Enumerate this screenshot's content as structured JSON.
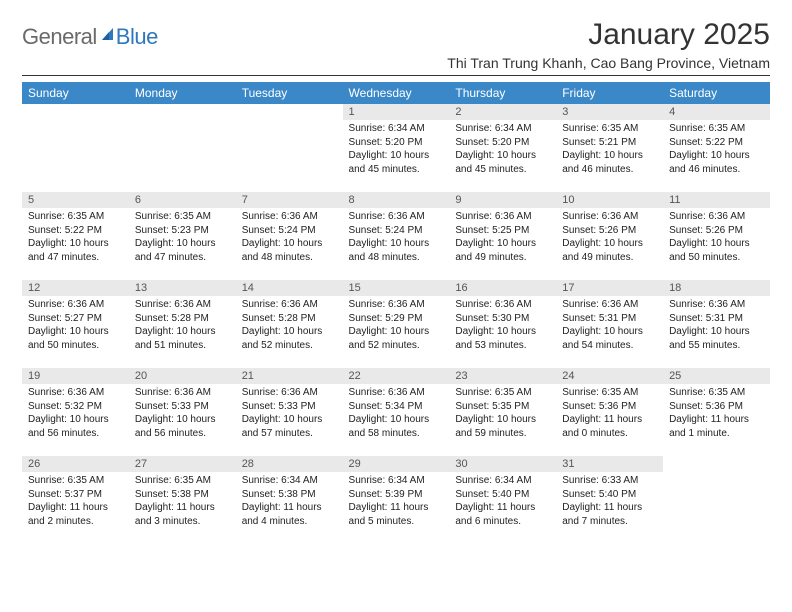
{
  "brand": {
    "part1": "General",
    "part2": "Blue"
  },
  "title": "January 2025",
  "location": "Thi Tran Trung Khanh, Cao Bang Province, Vietnam",
  "colors": {
    "header_bg": "#3b88c8",
    "header_text": "#ffffff",
    "daynum_bg": "#e9e9e9",
    "daynum_text": "#555555",
    "body_text": "#222222",
    "rule": "#333333",
    "logo_gray": "#6a6a6a",
    "logo_blue": "#2f78bd"
  },
  "day_headers": [
    "Sunday",
    "Monday",
    "Tuesday",
    "Wednesday",
    "Thursday",
    "Friday",
    "Saturday"
  ],
  "weeks": [
    [
      {
        "n": "",
        "lines": [
          "",
          "",
          "",
          ""
        ]
      },
      {
        "n": "",
        "lines": [
          "",
          "",
          "",
          ""
        ]
      },
      {
        "n": "",
        "lines": [
          "",
          "",
          "",
          ""
        ]
      },
      {
        "n": "1",
        "lines": [
          "Sunrise: 6:34 AM",
          "Sunset: 5:20 PM",
          "Daylight: 10 hours",
          "and 45 minutes."
        ]
      },
      {
        "n": "2",
        "lines": [
          "Sunrise: 6:34 AM",
          "Sunset: 5:20 PM",
          "Daylight: 10 hours",
          "and 45 minutes."
        ]
      },
      {
        "n": "3",
        "lines": [
          "Sunrise: 6:35 AM",
          "Sunset: 5:21 PM",
          "Daylight: 10 hours",
          "and 46 minutes."
        ]
      },
      {
        "n": "4",
        "lines": [
          "Sunrise: 6:35 AM",
          "Sunset: 5:22 PM",
          "Daylight: 10 hours",
          "and 46 minutes."
        ]
      }
    ],
    [
      {
        "n": "5",
        "lines": [
          "Sunrise: 6:35 AM",
          "Sunset: 5:22 PM",
          "Daylight: 10 hours",
          "and 47 minutes."
        ]
      },
      {
        "n": "6",
        "lines": [
          "Sunrise: 6:35 AM",
          "Sunset: 5:23 PM",
          "Daylight: 10 hours",
          "and 47 minutes."
        ]
      },
      {
        "n": "7",
        "lines": [
          "Sunrise: 6:36 AM",
          "Sunset: 5:24 PM",
          "Daylight: 10 hours",
          "and 48 minutes."
        ]
      },
      {
        "n": "8",
        "lines": [
          "Sunrise: 6:36 AM",
          "Sunset: 5:24 PM",
          "Daylight: 10 hours",
          "and 48 minutes."
        ]
      },
      {
        "n": "9",
        "lines": [
          "Sunrise: 6:36 AM",
          "Sunset: 5:25 PM",
          "Daylight: 10 hours",
          "and 49 minutes."
        ]
      },
      {
        "n": "10",
        "lines": [
          "Sunrise: 6:36 AM",
          "Sunset: 5:26 PM",
          "Daylight: 10 hours",
          "and 49 minutes."
        ]
      },
      {
        "n": "11",
        "lines": [
          "Sunrise: 6:36 AM",
          "Sunset: 5:26 PM",
          "Daylight: 10 hours",
          "and 50 minutes."
        ]
      }
    ],
    [
      {
        "n": "12",
        "lines": [
          "Sunrise: 6:36 AM",
          "Sunset: 5:27 PM",
          "Daylight: 10 hours",
          "and 50 minutes."
        ]
      },
      {
        "n": "13",
        "lines": [
          "Sunrise: 6:36 AM",
          "Sunset: 5:28 PM",
          "Daylight: 10 hours",
          "and 51 minutes."
        ]
      },
      {
        "n": "14",
        "lines": [
          "Sunrise: 6:36 AM",
          "Sunset: 5:28 PM",
          "Daylight: 10 hours",
          "and 52 minutes."
        ]
      },
      {
        "n": "15",
        "lines": [
          "Sunrise: 6:36 AM",
          "Sunset: 5:29 PM",
          "Daylight: 10 hours",
          "and 52 minutes."
        ]
      },
      {
        "n": "16",
        "lines": [
          "Sunrise: 6:36 AM",
          "Sunset: 5:30 PM",
          "Daylight: 10 hours",
          "and 53 minutes."
        ]
      },
      {
        "n": "17",
        "lines": [
          "Sunrise: 6:36 AM",
          "Sunset: 5:31 PM",
          "Daylight: 10 hours",
          "and 54 minutes."
        ]
      },
      {
        "n": "18",
        "lines": [
          "Sunrise: 6:36 AM",
          "Sunset: 5:31 PM",
          "Daylight: 10 hours",
          "and 55 minutes."
        ]
      }
    ],
    [
      {
        "n": "19",
        "lines": [
          "Sunrise: 6:36 AM",
          "Sunset: 5:32 PM",
          "Daylight: 10 hours",
          "and 56 minutes."
        ]
      },
      {
        "n": "20",
        "lines": [
          "Sunrise: 6:36 AM",
          "Sunset: 5:33 PM",
          "Daylight: 10 hours",
          "and 56 minutes."
        ]
      },
      {
        "n": "21",
        "lines": [
          "Sunrise: 6:36 AM",
          "Sunset: 5:33 PM",
          "Daylight: 10 hours",
          "and 57 minutes."
        ]
      },
      {
        "n": "22",
        "lines": [
          "Sunrise: 6:36 AM",
          "Sunset: 5:34 PM",
          "Daylight: 10 hours",
          "and 58 minutes."
        ]
      },
      {
        "n": "23",
        "lines": [
          "Sunrise: 6:35 AM",
          "Sunset: 5:35 PM",
          "Daylight: 10 hours",
          "and 59 minutes."
        ]
      },
      {
        "n": "24",
        "lines": [
          "Sunrise: 6:35 AM",
          "Sunset: 5:36 PM",
          "Daylight: 11 hours",
          "and 0 minutes."
        ]
      },
      {
        "n": "25",
        "lines": [
          "Sunrise: 6:35 AM",
          "Sunset: 5:36 PM",
          "Daylight: 11 hours",
          "and 1 minute."
        ]
      }
    ],
    [
      {
        "n": "26",
        "lines": [
          "Sunrise: 6:35 AM",
          "Sunset: 5:37 PM",
          "Daylight: 11 hours",
          "and 2 minutes."
        ]
      },
      {
        "n": "27",
        "lines": [
          "Sunrise: 6:35 AM",
          "Sunset: 5:38 PM",
          "Daylight: 11 hours",
          "and 3 minutes."
        ]
      },
      {
        "n": "28",
        "lines": [
          "Sunrise: 6:34 AM",
          "Sunset: 5:38 PM",
          "Daylight: 11 hours",
          "and 4 minutes."
        ]
      },
      {
        "n": "29",
        "lines": [
          "Sunrise: 6:34 AM",
          "Sunset: 5:39 PM",
          "Daylight: 11 hours",
          "and 5 minutes."
        ]
      },
      {
        "n": "30",
        "lines": [
          "Sunrise: 6:34 AM",
          "Sunset: 5:40 PM",
          "Daylight: 11 hours",
          "and 6 minutes."
        ]
      },
      {
        "n": "31",
        "lines": [
          "Sunrise: 6:33 AM",
          "Sunset: 5:40 PM",
          "Daylight: 11 hours",
          "and 7 minutes."
        ]
      },
      {
        "n": "",
        "lines": [
          "",
          "",
          "",
          ""
        ]
      }
    ]
  ]
}
